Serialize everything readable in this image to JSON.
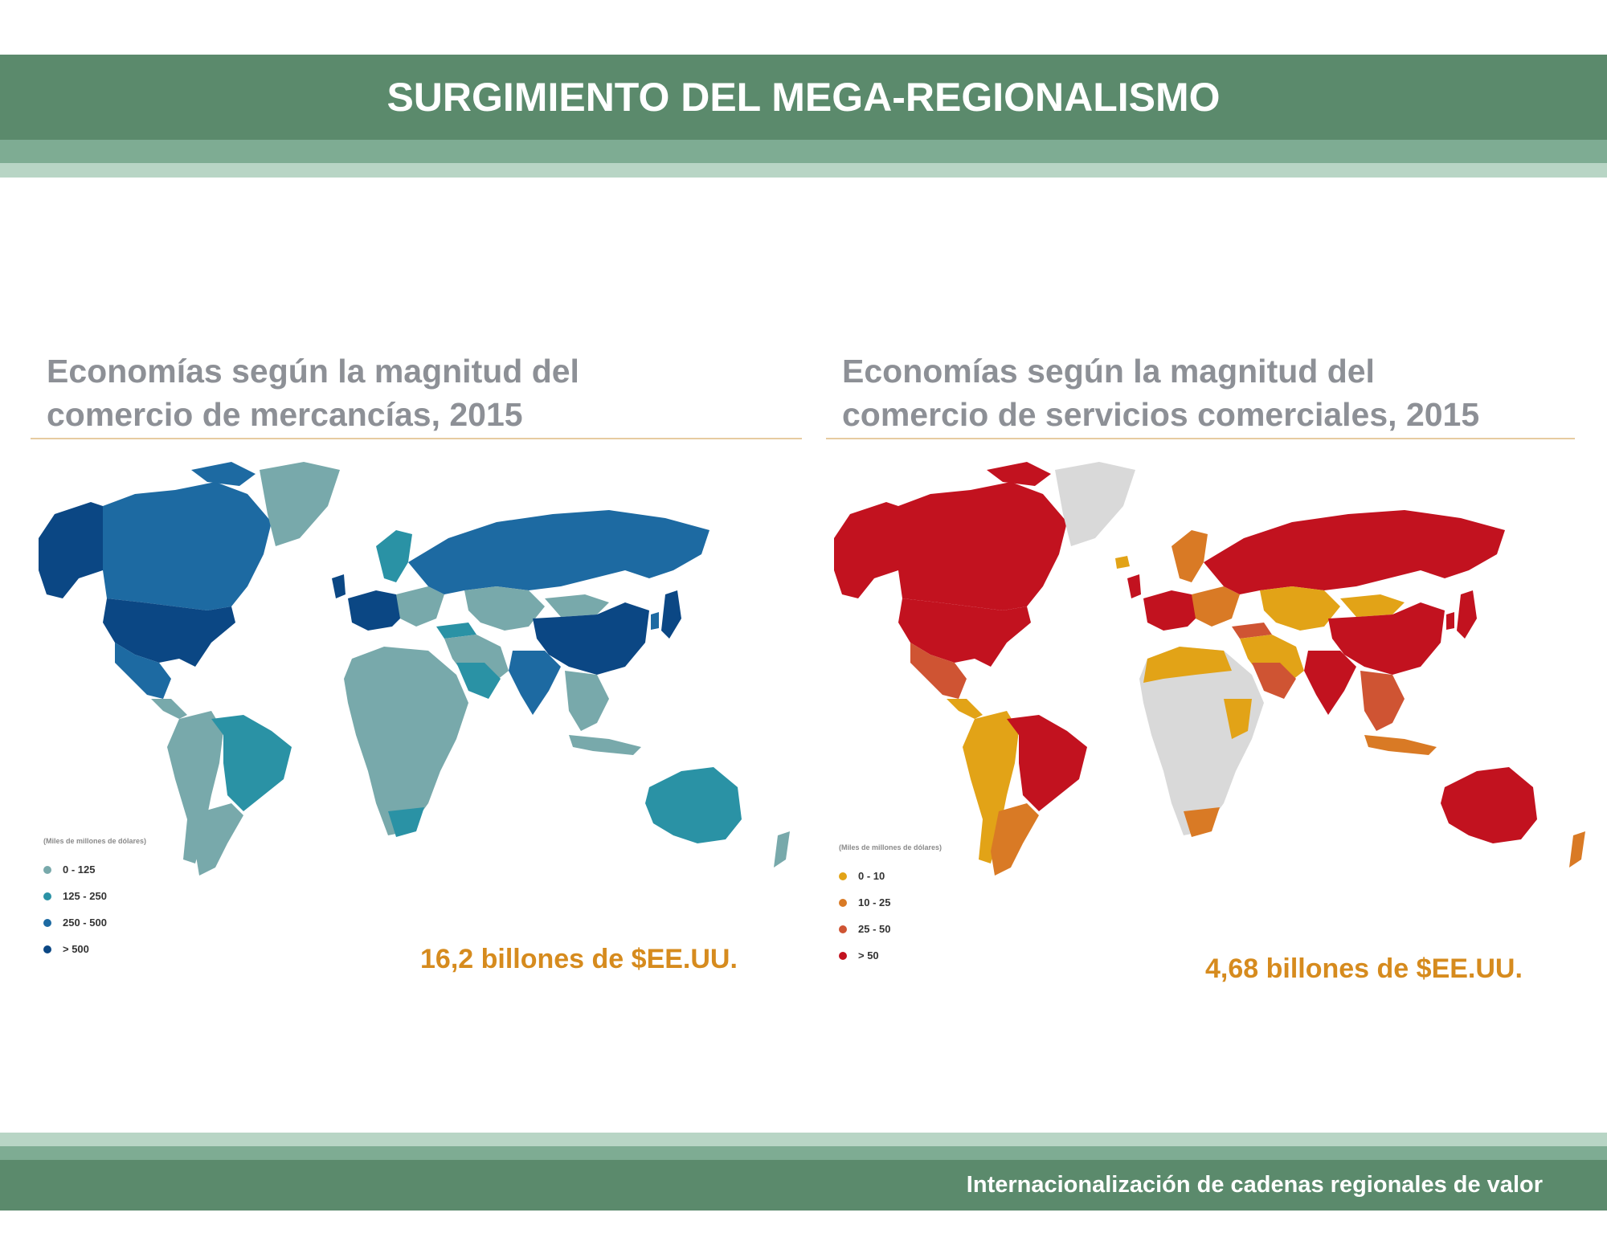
{
  "header": {
    "title": "SURGIMIENTO DEL MEGA-REGIONALISMO"
  },
  "footer": {
    "text": "Internacionalización de cadenas regionales de valor"
  },
  "map_left": {
    "title_line1": "Economías según la magnitud del",
    "title_line2": "comercio de mercancías, 2015",
    "legend_title": "(Miles de millones de dólares)",
    "legend": [
      {
        "label": "0 - 125",
        "color": "#78a9ab"
      },
      {
        "label": "125 - 250",
        "color": "#2a92a5"
      },
      {
        "label": "250 - 500",
        "color": "#1d6aa2"
      },
      {
        "label": "> 500",
        "color": "#0b4784"
      }
    ],
    "total": "16,2 billones de $EE.UU."
  },
  "map_right": {
    "title_line1": "Economías según la magnitud del",
    "title_line2": "comercio de servicios comerciales, 2015",
    "legend_title": "(Miles de millones de dólares)",
    "legend": [
      {
        "label": "0 - 10",
        "color": "#e2a317"
      },
      {
        "label": "10 - 25",
        "color": "#d97a25"
      },
      {
        "label": "25 - 50",
        "color": "#cf5433"
      },
      {
        "label": "> 50",
        "color": "#c2121f"
      }
    ],
    "total": "4,68 billones de $EE.UU.",
    "no_data_color": "#d9d9d9"
  },
  "colors": {
    "header_dark": "#5b8a6c",
    "header_mid": "#7eac93",
    "header_light": "#b8d5c5",
    "accent_total": "#d68b1e",
    "title_grey": "#8d9096"
  }
}
